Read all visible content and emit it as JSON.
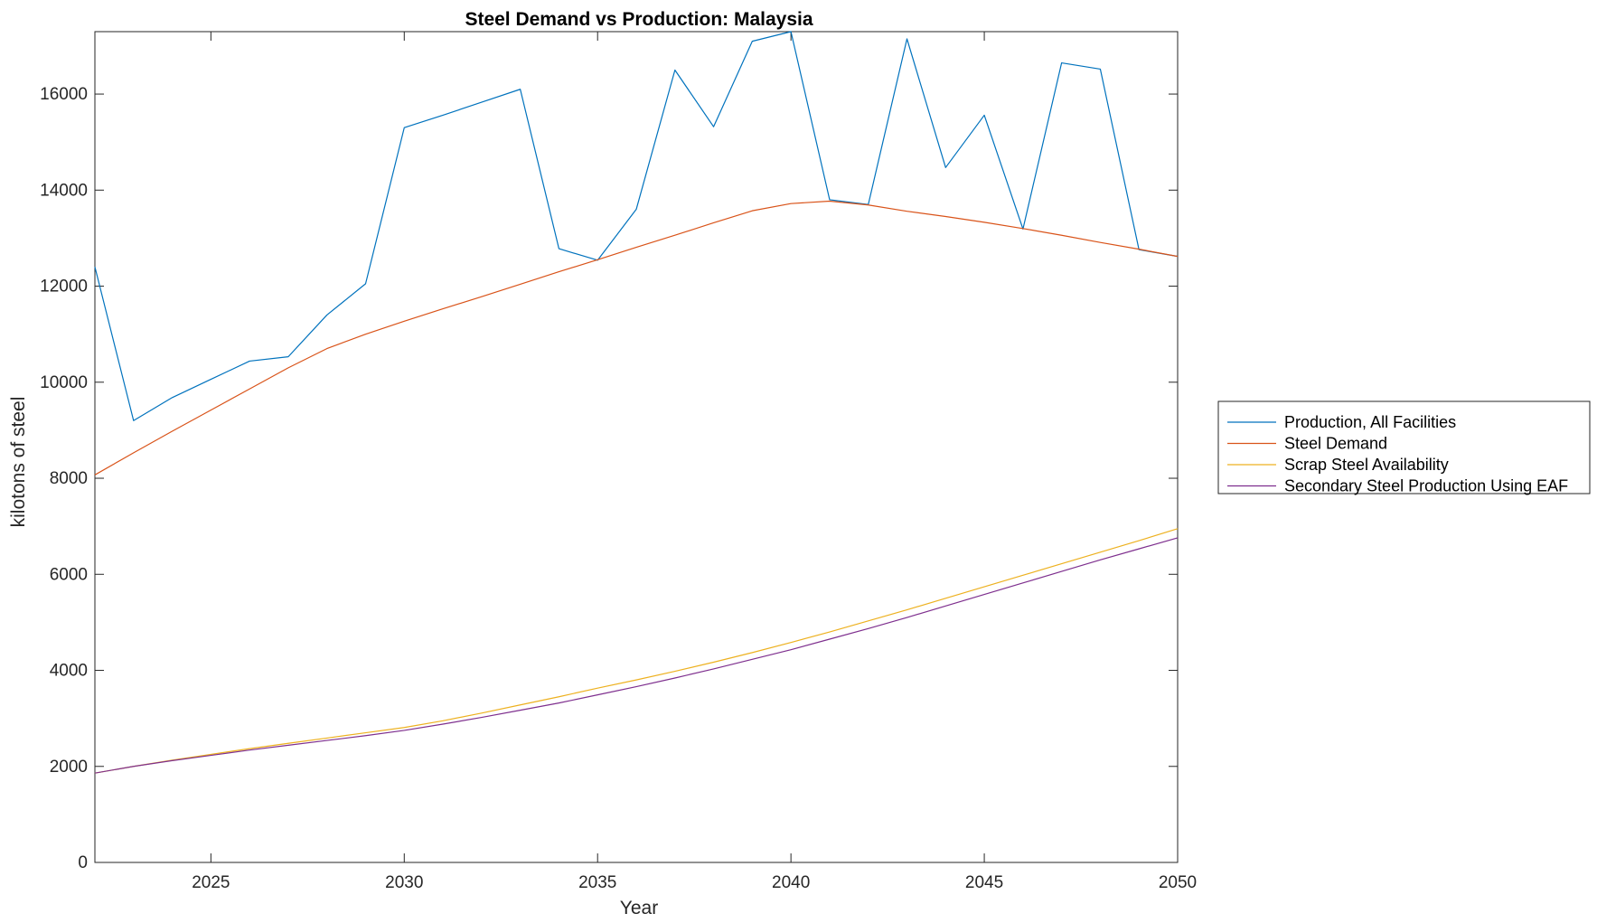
{
  "chart_data": {
    "type": "line",
    "title": "Steel Demand vs Production: Malaysia",
    "xlabel": "Year",
    "ylabel": "kilotons of steel",
    "xlim": [
      2022,
      2050
    ],
    "ylim": [
      0,
      17300
    ],
    "xticks": [
      2025,
      2030,
      2035,
      2040,
      2045,
      2050
    ],
    "yticks": [
      0,
      2000,
      4000,
      6000,
      8000,
      10000,
      12000,
      14000,
      16000
    ],
    "grid": false,
    "legend_position": "outside-right",
    "x": [
      2022,
      2023,
      2024,
      2025,
      2026,
      2027,
      2028,
      2029,
      2030,
      2031,
      2032,
      2033,
      2034,
      2035,
      2036,
      2037,
      2038,
      2039,
      2040,
      2041,
      2042,
      2043,
      2044,
      2045,
      2046,
      2047,
      2048,
      2049,
      2050
    ],
    "series": [
      {
        "name": "Production, All Facilities",
        "color": "#0072BD",
        "values": [
          12400,
          9200,
          9680,
          10060,
          10440,
          10530,
          11400,
          12050,
          15300,
          15560,
          15830,
          16100,
          12780,
          12540,
          13600,
          16500,
          15320,
          17100,
          17300,
          13800,
          13700,
          17150,
          14470,
          15560,
          13190,
          16650,
          16520,
          12760,
          12620
        ]
      },
      {
        "name": "Steel Demand",
        "color": "#D95319",
        "values": [
          8070,
          8530,
          8980,
          9420,
          9860,
          10300,
          10700,
          11000,
          11270,
          11530,
          11780,
          12040,
          12300,
          12550,
          12810,
          13060,
          13320,
          13570,
          13720,
          13770,
          13690,
          13560,
          13450,
          13330,
          13200,
          13060,
          12910,
          12770,
          12620
        ]
      },
      {
        "name": "Scrap Steel Availability",
        "color": "#EDB120",
        "values": [
          1860,
          2000,
          2130,
          2250,
          2370,
          2480,
          2590,
          2700,
          2810,
          2950,
          3110,
          3280,
          3450,
          3630,
          3800,
          3980,
          4170,
          4370,
          4580,
          4800,
          5030,
          5260,
          5500,
          5740,
          5980,
          6220,
          6460,
          6700,
          6950
        ]
      },
      {
        "name": "Secondary Steel Production Using EAF",
        "color": "#7E2F8E",
        "values": [
          1860,
          2000,
          2120,
          2230,
          2340,
          2440,
          2540,
          2640,
          2750,
          2880,
          3020,
          3170,
          3320,
          3490,
          3660,
          3840,
          4030,
          4230,
          4430,
          4650,
          4870,
          5100,
          5340,
          5580,
          5820,
          6060,
          6300,
          6530,
          6760
        ]
      }
    ]
  }
}
